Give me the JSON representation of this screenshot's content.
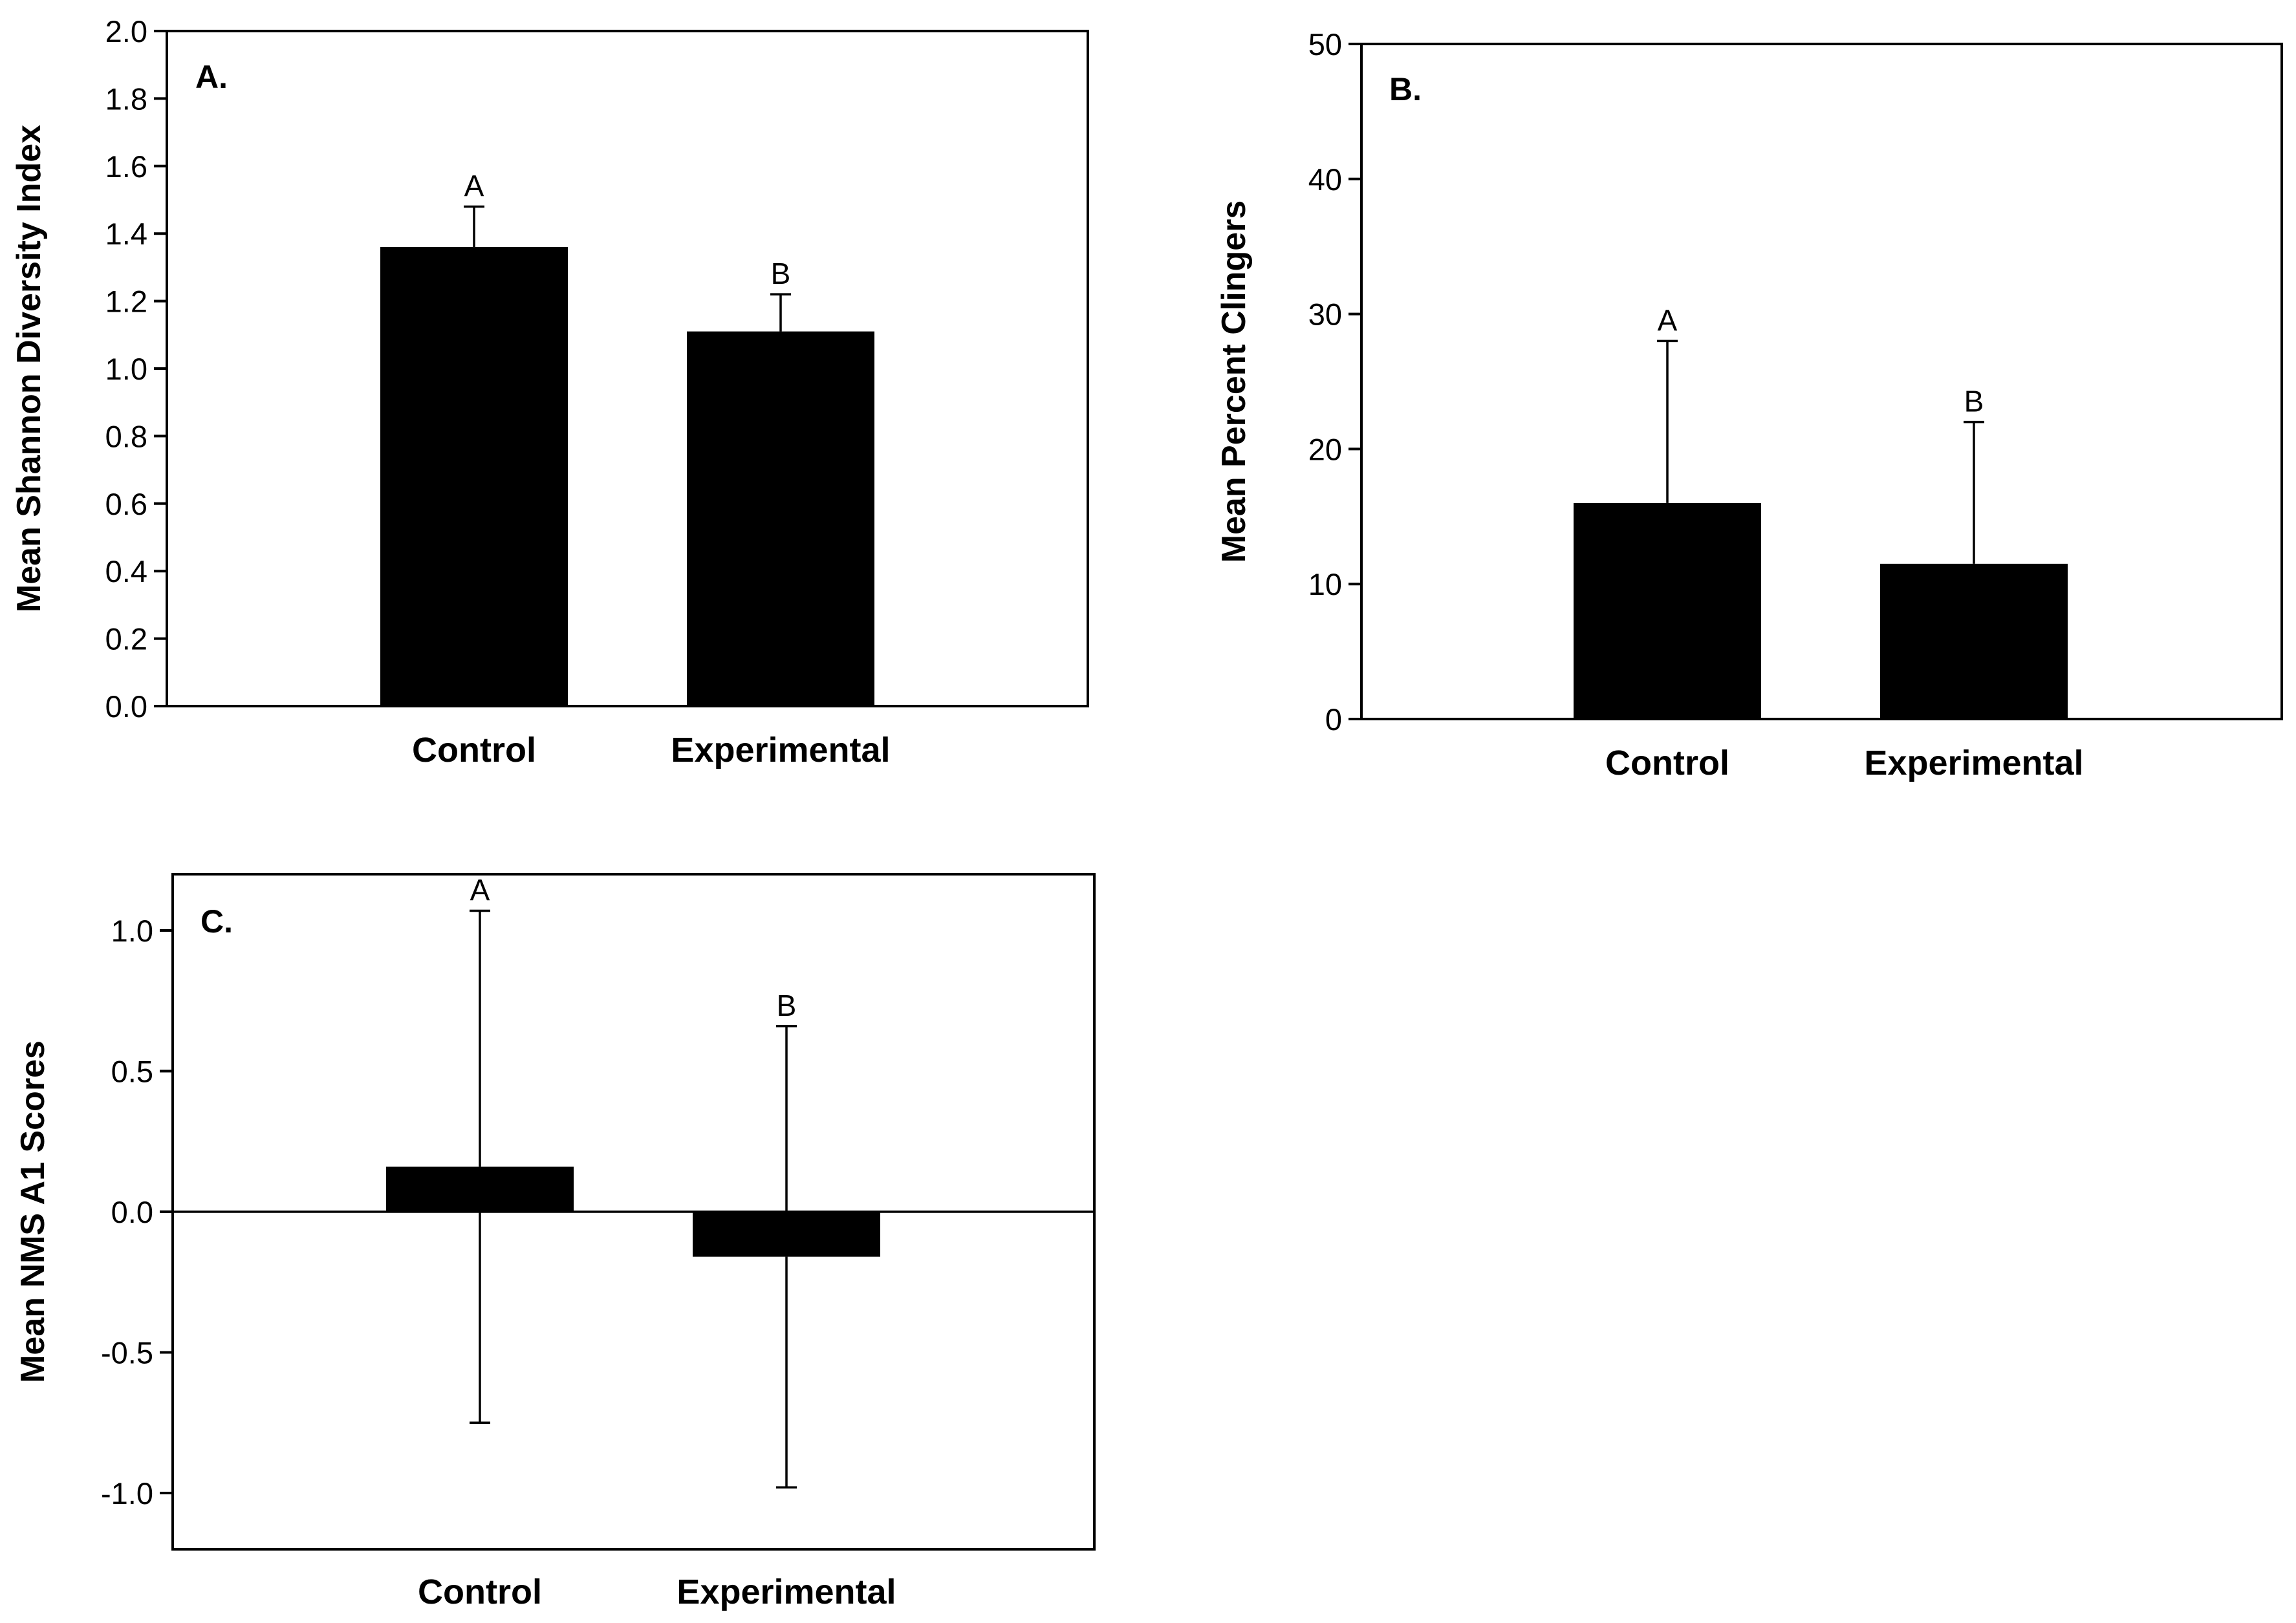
{
  "chart_data": [
    {
      "type": "bar",
      "panel_label": "A.",
      "categories": [
        "Control",
        "Experimental"
      ],
      "values": [
        1.36,
        1.11
      ],
      "error_upper": [
        1.48,
        1.22
      ],
      "error_lower": [
        null,
        null
      ],
      "significance": [
        "A",
        "B"
      ],
      "ylabel": "Mean Shannon Diversity Index",
      "ylim": [
        0.0,
        2.0
      ],
      "yticks": [
        "0.0",
        "0.2",
        "0.4",
        "0.6",
        "0.8",
        "1.0",
        "1.2",
        "1.4",
        "1.6",
        "1.8",
        "2.0"
      ],
      "ytick_values": [
        0,
        0.2,
        0.4,
        0.6,
        0.8,
        1.0,
        1.2,
        1.4,
        1.6,
        1.8,
        2.0
      ],
      "bar_color": "#000000"
    },
    {
      "type": "bar",
      "panel_label": "B.",
      "categories": [
        "Control",
        "Experimental"
      ],
      "values": [
        16,
        11.5
      ],
      "error_upper": [
        28,
        22
      ],
      "error_lower": [
        null,
        null
      ],
      "significance": [
        "A",
        "B"
      ],
      "ylabel": "Mean Percent Clingers",
      "ylim": [
        0,
        50
      ],
      "yticks": [
        "0",
        "10",
        "20",
        "30",
        "40",
        "50"
      ],
      "ytick_values": [
        0,
        10,
        20,
        30,
        40,
        50
      ],
      "bar_color": "#000000"
    },
    {
      "type": "bar",
      "panel_label": "C.",
      "categories": [
        "Control",
        "Experimental"
      ],
      "values": [
        0.16,
        -0.16
      ],
      "error_upper": [
        1.07,
        0.66
      ],
      "error_lower": [
        -0.75,
        -0.98
      ],
      "significance": [
        "A",
        "B"
      ],
      "ylabel": "Mean NMS A1 Scores",
      "ylim": [
        -1.2,
        1.2
      ],
      "yticks": [
        "-1.0",
        "-0.5",
        "0.0",
        "0.5",
        "1.0"
      ],
      "ytick_values": [
        -1.0,
        -0.5,
        0.0,
        0.5,
        1.0
      ],
      "bar_color": "#000000"
    }
  ]
}
